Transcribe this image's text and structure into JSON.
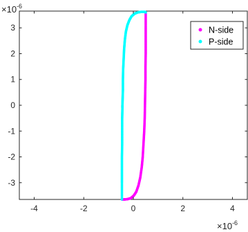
{
  "chart_data": {
    "type": "scatter",
    "title": "",
    "xlabel": "",
    "ylabel": "",
    "x_exponent_base": "×10",
    "x_exponent_power": "-6",
    "y_exponent_base": "×10",
    "y_exponent_power": "-6",
    "xlim": [
      -4.6,
      4.6
    ],
    "ylim": [
      -3.65,
      3.65
    ],
    "xticks": [
      -4,
      -2,
      0,
      2,
      4
    ],
    "yticks": [
      -3,
      -2,
      -1,
      0,
      1,
      2,
      3
    ],
    "xtick_labels": [
      "-4",
      "-2",
      "0",
      "2",
      "4"
    ],
    "ytick_labels": [
      "-3",
      "-2",
      "-1",
      "0",
      "1",
      "2",
      "3"
    ],
    "grid": false,
    "legend_position": "top-right",
    "series": [
      {
        "name": "N-side",
        "color": "#ff00ff",
        "x": [
          0.5,
          0.5,
          0.5,
          0.5,
          0.49,
          0.49,
          0.48,
          0.47,
          0.46,
          0.44,
          0.41,
          0.38,
          0.34,
          0.28,
          0.21,
          0.12,
          0.02,
          -0.1,
          -0.24,
          -0.38,
          -0.46
        ],
        "y": [
          3.6,
          3.0,
          2.5,
          2.0,
          1.5,
          1.0,
          0.5,
          0.0,
          -0.5,
          -1.0,
          -1.5,
          -2.0,
          -2.4,
          -2.8,
          -3.1,
          -3.35,
          -3.5,
          -3.6,
          -3.64,
          -3.65,
          -3.65
        ]
      },
      {
        "name": "P-side",
        "color": "#00ffff",
        "x": [
          -0.46,
          -0.46,
          -0.46,
          -0.46,
          -0.45,
          -0.45,
          -0.45,
          -0.44,
          -0.44,
          -0.43,
          -0.42,
          -0.42,
          -0.41,
          -0.39,
          -0.37,
          -0.34,
          -0.3,
          -0.24,
          -0.16,
          -0.07,
          0.05,
          0.18,
          0.32,
          0.45,
          0.5
        ],
        "y": [
          -3.65,
          -3.0,
          -2.5,
          -2.0,
          -1.5,
          -1.0,
          -0.5,
          -0.1,
          0.0,
          0.3,
          0.6,
          1.0,
          1.4,
          1.8,
          2.2,
          2.55,
          2.85,
          3.1,
          3.3,
          3.45,
          3.55,
          3.6,
          3.62,
          3.62,
          3.6
        ]
      }
    ]
  }
}
